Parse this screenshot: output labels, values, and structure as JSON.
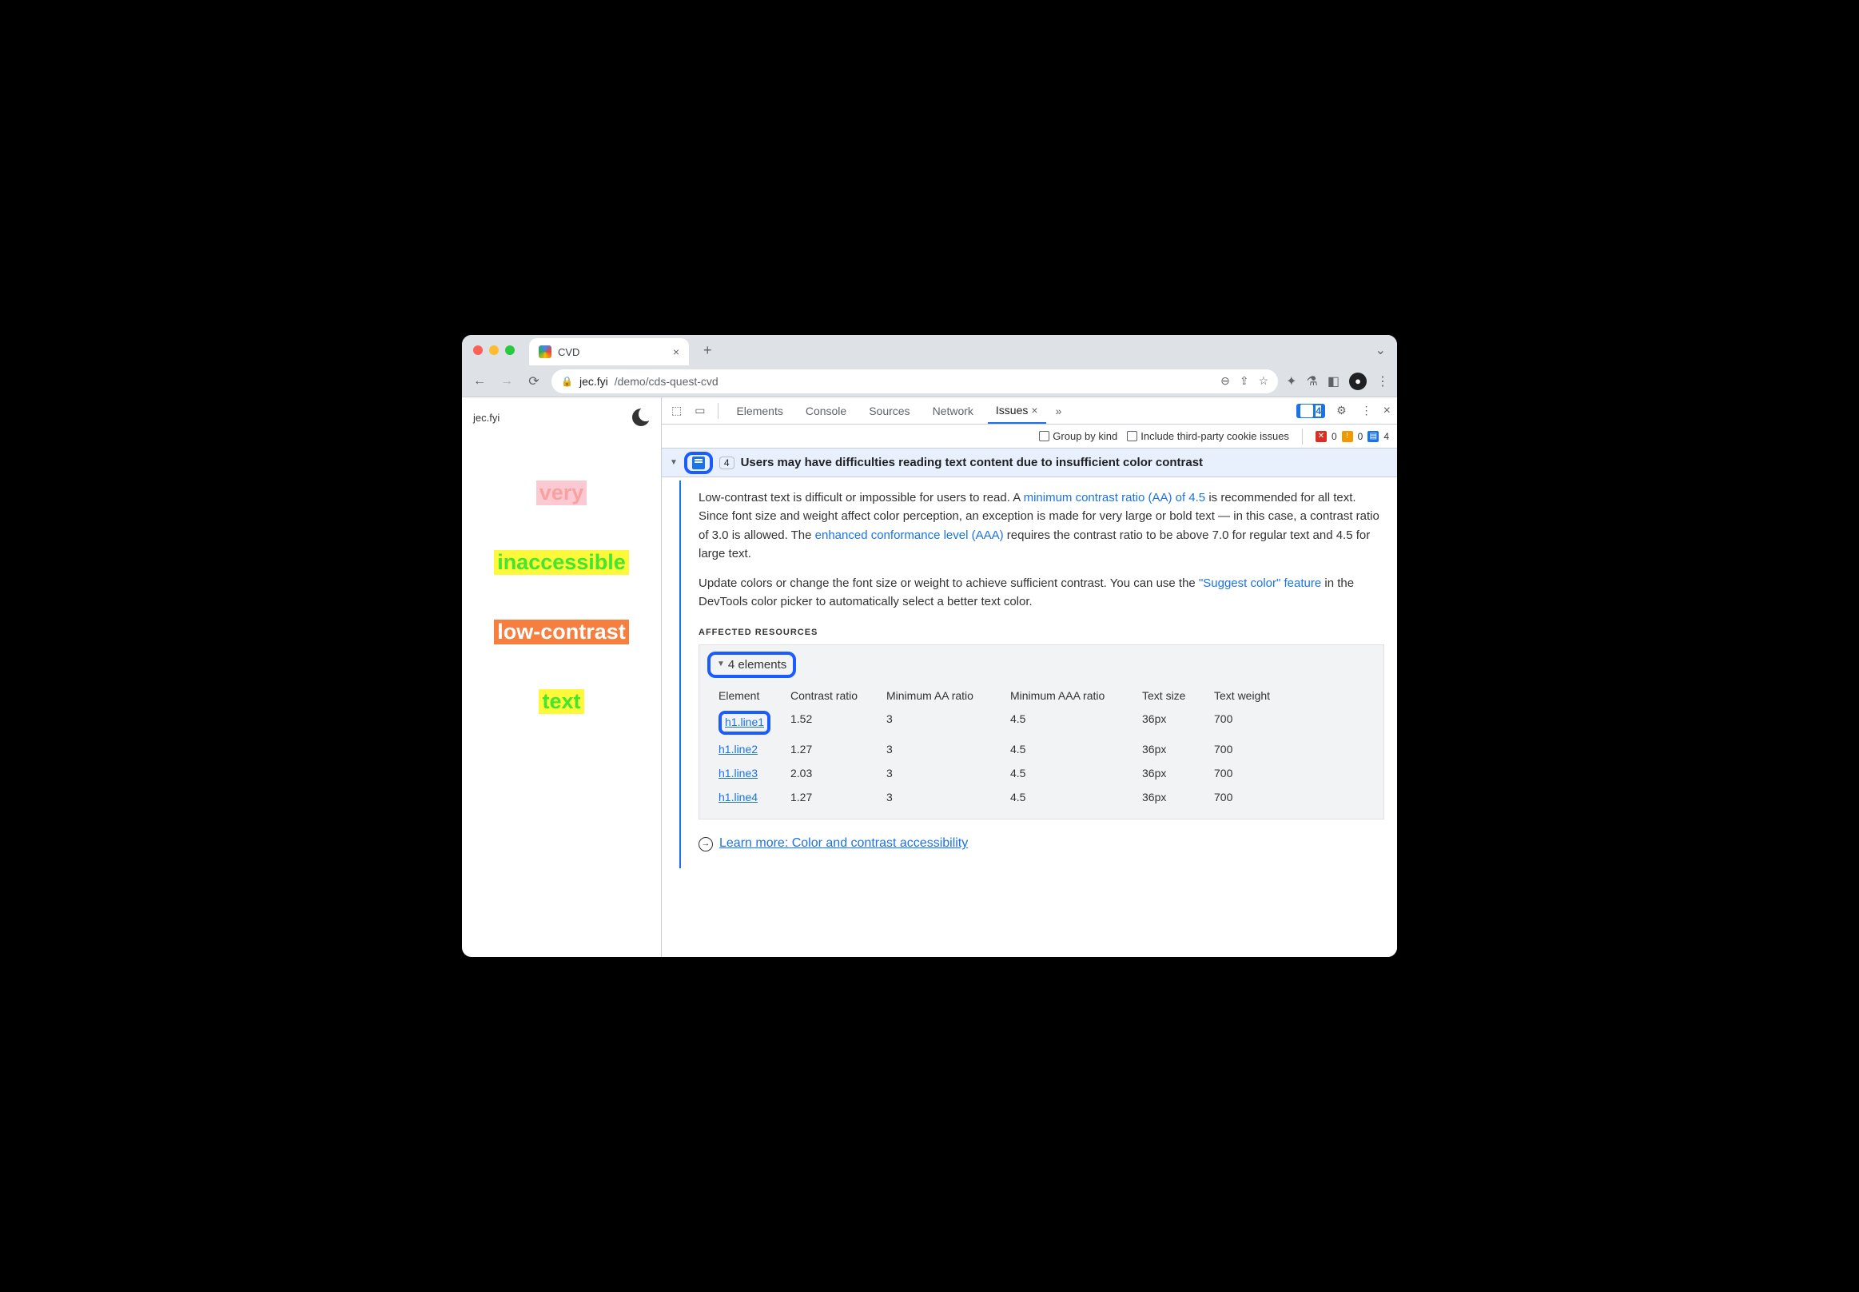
{
  "browser": {
    "tab_title": "CVD",
    "url_host": "jec.fyi",
    "url_path": "/demo/cds-quest-cvd"
  },
  "page": {
    "site_label": "jec.fyi",
    "samples": [
      {
        "text": "very",
        "fg": "#f7a1a1",
        "bg": "#fbc9d1"
      },
      {
        "text": "inaccessible",
        "fg": "#43e62e",
        "bg": "#fdf93a"
      },
      {
        "text": "low-contrast",
        "fg": "#ffffff",
        "bg": "#f67e3e"
      },
      {
        "text": "text",
        "fg": "#43e62e",
        "bg": "#fdf93a"
      }
    ]
  },
  "devtools": {
    "tabs": [
      "Elements",
      "Console",
      "Sources",
      "Network",
      "Issues"
    ],
    "active_tab": "Issues",
    "issues_badge": "4",
    "filter": {
      "group_label": "Group by kind",
      "third_party_label": "Include third-party cookie issues"
    },
    "counts": {
      "errors": "0",
      "warnings": "0",
      "info": "4"
    },
    "issue": {
      "title": "Users may have difficulties reading text content due to insufficient color contrast",
      "count": "4",
      "body_pre1": "Low-contrast text is difficult or impossible for users to read. A ",
      "link1_text": "minimum contrast ratio (AA) of 4.5",
      "body_mid1": " is recommended for all text. Since font size and weight affect color perception, an exception is made for very large or bold text — in this case, a contrast ratio of 3.0 is allowed. The ",
      "link2_text": "enhanced conformance level (AAA)",
      "body_post1": " requires the contrast ratio to be above 7.0 for regular text and 4.5 for large text.",
      "body_p2_pre": "Update colors or change the font size or weight to achieve sufficient contrast. You can use the ",
      "link3_text": "\"Suggest color\" feature",
      "body_p2_post": " in the DevTools color picker to automatically select a better text color.",
      "affected_label": "AFFECTED RESOURCES",
      "elements_summary": "4 elements",
      "columns": [
        "Element",
        "Contrast ratio",
        "Minimum AA ratio",
        "Minimum AAA ratio",
        "Text size",
        "Text weight"
      ],
      "rows": [
        {
          "el": "h1.line1",
          "ratio": "1.52",
          "aa": "3",
          "aaa": "4.5",
          "size": "36px",
          "weight": "700"
        },
        {
          "el": "h1.line2",
          "ratio": "1.27",
          "aa": "3",
          "aaa": "4.5",
          "size": "36px",
          "weight": "700"
        },
        {
          "el": "h1.line3",
          "ratio": "2.03",
          "aa": "3",
          "aaa": "4.5",
          "size": "36px",
          "weight": "700"
        },
        {
          "el": "h1.line4",
          "ratio": "1.27",
          "aa": "3",
          "aaa": "4.5",
          "size": "36px",
          "weight": "700"
        }
      ],
      "learn_more": "Learn more: Color and contrast accessibility"
    }
  },
  "colors": {
    "link": "#1a73e8",
    "highlight_ring": "#1a5cff",
    "issue_header_bg": "#e8f0fe",
    "panel_bg": "#f1f3f4"
  }
}
